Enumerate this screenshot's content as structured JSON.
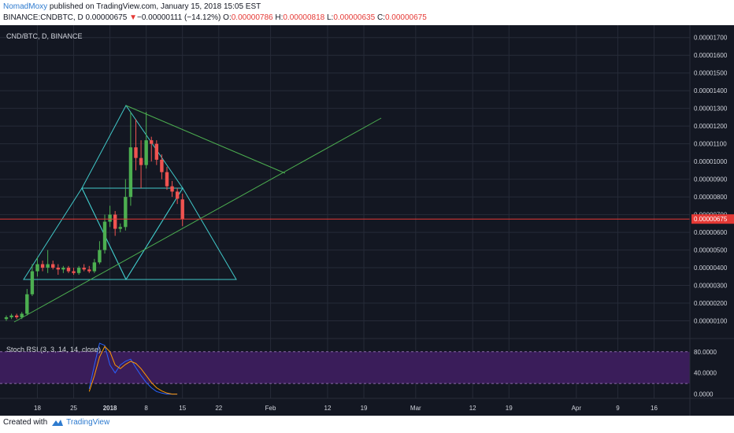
{
  "header": {
    "author": "NomadMoxy",
    "published_text": "published on TradingView.com, January 15, 2018 15:05 EST",
    "symbol_line": "BINANCE:CNDBTC, D",
    "last": "0.00000675",
    "change_arrow": "▼",
    "change": "−0.00000111 (−14.12%)",
    "o_label": "O:",
    "o": "0.00000786",
    "h_label": "H:",
    "h": "0.00000818",
    "l_label": "L:",
    "l": "0.00000635",
    "c_label": "C:",
    "c": "0.00000675"
  },
  "footer": {
    "created_with": "Created with",
    "brand": "TradingView"
  },
  "colors": {
    "background": "#131722",
    "up": "#26a69a",
    "up_bright": "#4caf50",
    "down": "#ef5350",
    "pattern_lines": "#40c8c8",
    "trend_lines": "#4caf50",
    "price_line": "#e53935",
    "rsi_band": "#3a1d5a",
    "rsi_k": "#2962ff",
    "rsi_d": "#ff9800"
  },
  "chart_data": {
    "type": "candlestick",
    "pane_title": "CND/BTC, D, BINANCE",
    "x_tick_labels": [
      "18",
      "25",
      "2018",
      "8",
      "15",
      "22",
      "Feb",
      "12",
      "19",
      "Mar",
      "12",
      "19",
      "Apr",
      "9",
      "16"
    ],
    "y_tick_labels": [
      "0.00000100",
      "0.00000200",
      "0.00000300",
      "0.00000400",
      "0.00000500",
      "0.00000600",
      "0.00000700",
      "0.00000800",
      "0.00000900",
      "0.00001000",
      "0.00001100",
      "0.00001200",
      "0.00001300",
      "0.00001400",
      "0.00001500",
      "0.00001600",
      "0.00001700"
    ],
    "y_tick_values": [
      1e-06,
      2e-06,
      3e-06,
      4e-06,
      5e-06,
      6e-06,
      7e-06,
      8e-06,
      9e-06,
      1e-05,
      1.1e-05,
      1.2e-05,
      1.3e-05,
      1.4e-05,
      1.5e-05,
      1.6e-05,
      1.7e-05
    ],
    "ylim": [
      0,
      1.77e-05
    ],
    "current_price": "0.00000675",
    "current_value": 6.75e-06,
    "candles": [
      {
        "date": "2017-12-12",
        "o": 1.1e-06,
        "h": 1.3e-06,
        "l": 1e-06,
        "c": 1.2e-06
      },
      {
        "date": "2017-12-13",
        "o": 1.2e-06,
        "h": 1.4e-06,
        "l": 1.1e-06,
        "c": 1.3e-06
      },
      {
        "date": "2017-12-14",
        "o": 1.3e-06,
        "h": 1.4e-06,
        "l": 1.1e-06,
        "c": 1.2e-06
      },
      {
        "date": "2017-12-15",
        "o": 1.2e-06,
        "h": 1.5e-06,
        "l": 1.1e-06,
        "c": 1.4e-06
      },
      {
        "date": "2017-12-16",
        "o": 1.4e-06,
        "h": 2.8e-06,
        "l": 1.3e-06,
        "c": 2.5e-06
      },
      {
        "date": "2017-12-17",
        "o": 2.5e-06,
        "h": 4.2e-06,
        "l": 2.4e-06,
        "c": 3.8e-06
      },
      {
        "date": "2017-12-18",
        "o": 3.8e-06,
        "h": 4.6e-06,
        "l": 3.5e-06,
        "c": 4.2e-06
      },
      {
        "date": "2017-12-19",
        "o": 4.2e-06,
        "h": 4.4e-06,
        "l": 3.8e-06,
        "c": 4e-06
      },
      {
        "date": "2017-12-20",
        "o": 4e-06,
        "h": 5e-06,
        "l": 3.7e-06,
        "c": 4.2e-06
      },
      {
        "date": "2017-12-21",
        "o": 4.2e-06,
        "h": 4.4e-06,
        "l": 3.9e-06,
        "c": 4e-06
      },
      {
        "date": "2017-12-22",
        "o": 4e-06,
        "h": 4.2e-06,
        "l": 3.6e-06,
        "c": 3.9e-06
      },
      {
        "date": "2017-12-23",
        "o": 3.9e-06,
        "h": 4.1e-06,
        "l": 3.7e-06,
        "c": 4e-06
      },
      {
        "date": "2017-12-24",
        "o": 4e-06,
        "h": 4.1e-06,
        "l": 3.7e-06,
        "c": 3.8e-06
      },
      {
        "date": "2017-12-25",
        "o": 3.8e-06,
        "h": 4e-06,
        "l": 3.6e-06,
        "c": 3.7e-06
      },
      {
        "date": "2017-12-26",
        "o": 3.7e-06,
        "h": 4.1e-06,
        "l": 3.6e-06,
        "c": 4e-06
      },
      {
        "date": "2017-12-27",
        "o": 4e-06,
        "h": 4.2e-06,
        "l": 3.8e-06,
        "c": 3.9e-06
      },
      {
        "date": "2017-12-28",
        "o": 3.9e-06,
        "h": 4.1e-06,
        "l": 3.7e-06,
        "c": 3.8e-06
      },
      {
        "date": "2017-12-29",
        "o": 3.8e-06,
        "h": 4.5e-06,
        "l": 3.7e-06,
        "c": 4.3e-06
      },
      {
        "date": "2017-12-30",
        "o": 4.3e-06,
        "h": 5.5e-06,
        "l": 4.2e-06,
        "c": 5e-06
      },
      {
        "date": "2017-12-31",
        "o": 5e-06,
        "h": 7e-06,
        "l": 4.8e-06,
        "c": 6.6e-06
      },
      {
        "date": "2018-01-01",
        "o": 6.6e-06,
        "h": 7.5e-06,
        "l": 6.3e-06,
        "c": 7e-06
      },
      {
        "date": "2018-01-02",
        "o": 7e-06,
        "h": 7.2e-06,
        "l": 5.8e-06,
        "c": 6.2e-06
      },
      {
        "date": "2018-01-03",
        "o": 6.2e-06,
        "h": 6.5e-06,
        "l": 6e-06,
        "c": 6.3e-06
      },
      {
        "date": "2018-01-04",
        "o": 6.3e-06,
        "h": 9e-06,
        "l": 6.1e-06,
        "c": 8e-06
      },
      {
        "date": "2018-01-05",
        "o": 8e-06,
        "h": 1.28e-05,
        "l": 7.5e-06,
        "c": 1.08e-05
      },
      {
        "date": "2018-01-06",
        "o": 1.08e-05,
        "h": 1.24e-05,
        "l": 9.5e-06,
        "c": 1.02e-05
      },
      {
        "date": "2018-01-07",
        "o": 1.02e-05,
        "h": 1.12e-05,
        "l": 8.5e-06,
        "c": 9.8e-06
      },
      {
        "date": "2018-01-08",
        "o": 9.8e-06,
        "h": 1.28e-05,
        "l": 9.6e-06,
        "c": 1.12e-05
      },
      {
        "date": "2018-01-09",
        "o": 1.12e-05,
        "h": 1.14e-05,
        "l": 1e-05,
        "c": 1.1e-05
      },
      {
        "date": "2018-01-10",
        "o": 1.1e-05,
        "h": 1.12e-05,
        "l": 9.8e-06,
        "c": 1.01e-05
      },
      {
        "date": "2018-01-11",
        "o": 1.01e-05,
        "h": 1.04e-05,
        "l": 9e-06,
        "c": 9.4e-06
      },
      {
        "date": "2018-01-12",
        "o": 9.4e-06,
        "h": 9.7e-06,
        "l": 8.4e-06,
        "c": 8.6e-06
      },
      {
        "date": "2018-01-13",
        "o": 8.6e-06,
        "h": 8.9e-06,
        "l": 8e-06,
        "c": 8.3e-06
      },
      {
        "date": "2018-01-14",
        "o": 8.3e-06,
        "h": 8.5e-06,
        "l": 7.6e-06,
        "c": 7.9e-06
      },
      {
        "date": "2018-01-15",
        "o": 7.86e-06,
        "h": 8.18e-06,
        "l": 6.35e-06,
        "c": 6.75e-06
      }
    ],
    "stoch_rsi": {
      "label": "Stoch RSI (3, 3, 14, 14, close)",
      "y_tick_labels": [
        "80.0000",
        "40.0000",
        "0.0000"
      ],
      "y_tick_values": [
        80,
        40,
        0
      ],
      "ylim": [
        -8,
        96
      ],
      "band": [
        20,
        80
      ],
      "k": [
        10,
        55,
        96,
        92,
        55,
        40,
        55,
        62,
        66,
        50,
        35,
        22,
        12,
        5,
        2,
        0,
        0,
        0
      ],
      "d": [
        5,
        35,
        70,
        90,
        80,
        55,
        48,
        56,
        62,
        58,
        48,
        35,
        22,
        12,
        6,
        2,
        0,
        0
      ]
    }
  }
}
